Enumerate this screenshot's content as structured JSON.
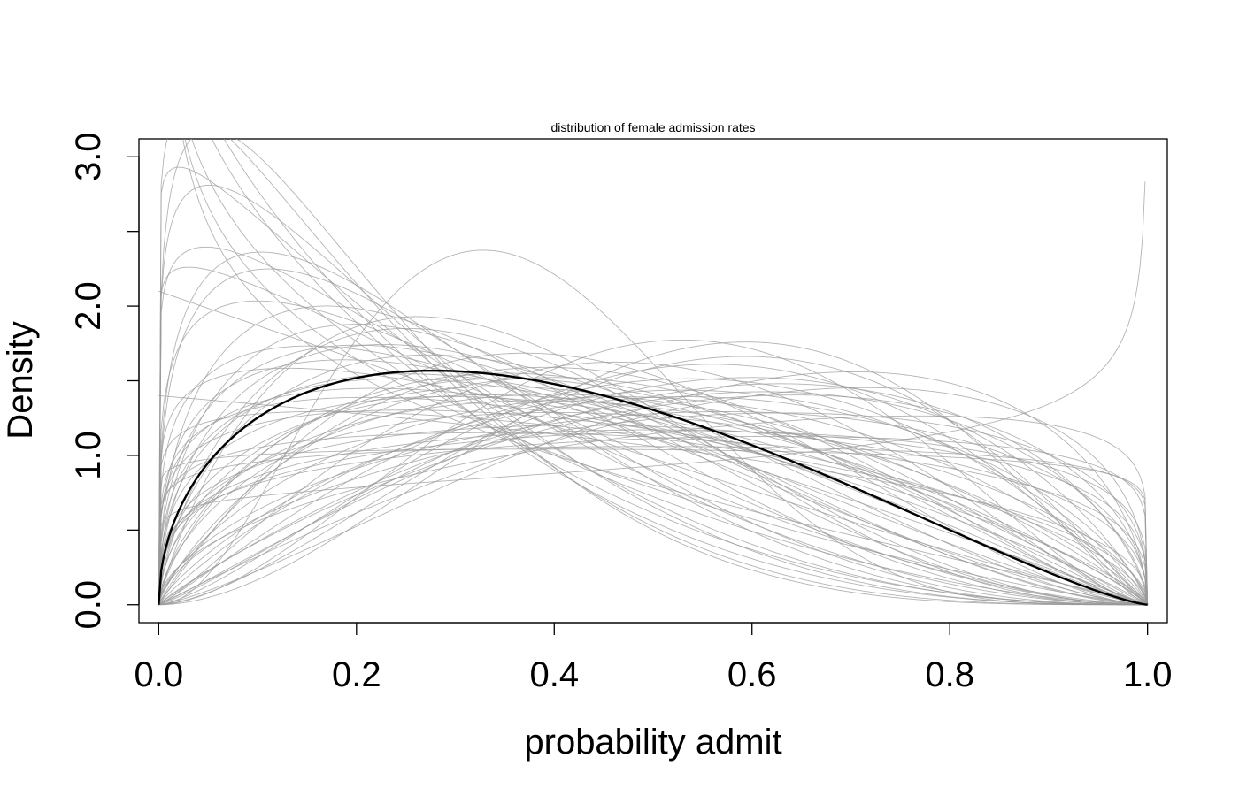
{
  "chart_data": {
    "type": "line",
    "title": "distribution of female admission rates",
    "xlabel": "probability admit",
    "ylabel": "Density",
    "xlim": [
      -0.02,
      1.02
    ],
    "ylim": [
      -0.12,
      3.12
    ],
    "xticks": [
      0.0,
      0.2,
      0.4,
      0.6,
      0.8,
      1.0
    ],
    "xtick_labels": [
      "0.0",
      "0.2",
      "0.4",
      "0.6",
      "0.8",
      "1.0"
    ],
    "yticks": [
      0.0,
      0.5,
      1.0,
      1.5,
      2.0,
      2.5,
      3.0
    ],
    "yticks_labeled": [
      0.0,
      1.0,
      2.0,
      3.0
    ],
    "ytick_labels": [
      "0.0",
      "1.0",
      "2.0",
      "3.0"
    ],
    "grid": false,
    "legend": "none",
    "mean_curve": {
      "distribution": "beta",
      "a": 1.5,
      "b": 2.3,
      "color": "#000000"
    },
    "posterior_samples": {
      "distribution": "beta",
      "color": "#9a9a9a",
      "params": [
        [
          0.85,
          2.6
        ],
        [
          0.9,
          3.2
        ],
        [
          0.8,
          2.2
        ],
        [
          0.95,
          3.6
        ],
        [
          0.75,
          1.9
        ],
        [
          1.05,
          3.4
        ],
        [
          1.1,
          4.2
        ],
        [
          1.2,
          4.6
        ],
        [
          1.1,
          3.0
        ],
        [
          1.3,
          3.6
        ],
        [
          1.2,
          2.8
        ],
        [
          1.15,
          2.0
        ],
        [
          1.3,
          2.3
        ],
        [
          1.4,
          2.6
        ],
        [
          1.5,
          3.0
        ],
        [
          1.25,
          1.9
        ],
        [
          1.6,
          2.6
        ],
        [
          1.7,
          2.3
        ],
        [
          1.5,
          1.8
        ],
        [
          1.8,
          2.2
        ],
        [
          1.9,
          2.4
        ],
        [
          2.0,
          2.7
        ],
        [
          1.7,
          1.8
        ],
        [
          2.2,
          2.4
        ],
        [
          2.4,
          2.1
        ],
        [
          2.2,
          1.8
        ],
        [
          2.1,
          1.65
        ],
        [
          2.6,
          2.1
        ],
        [
          2.9,
          2.3
        ],
        [
          2.3,
          1.55
        ],
        [
          1.9,
          1.5
        ],
        [
          2.0,
          1.4
        ],
        [
          1.6,
          1.45
        ],
        [
          1.55,
          2.05
        ],
        [
          1.4,
          1.6
        ],
        [
          1.45,
          1.9
        ],
        [
          1.3,
          1.4
        ],
        [
          1.05,
          1.08
        ],
        [
          1.3,
          1.25
        ],
        [
          1.6,
          1.35
        ],
        [
          1.5,
          1.15
        ],
        [
          1.35,
          2.1
        ],
        [
          1.2,
          1.75
        ],
        [
          1.1,
          1.5
        ],
        [
          1.0,
          1.4
        ],
        [
          1.7,
          3.1
        ],
        [
          1.45,
          3.2
        ],
        [
          1.85,
          3.4
        ],
        [
          1.95,
          1.6
        ],
        [
          1.25,
          2.4
        ],
        [
          1.15,
          1.3
        ],
        [
          1.5,
          2.7
        ],
        [
          2.1,
          1.95
        ],
        [
          1.0,
          2.1
        ],
        [
          1.3,
          3.4
        ],
        [
          1.6,
          1.9
        ],
        [
          3.1,
          5.3
        ],
        [
          1.1,
          1.1
        ],
        [
          1.2,
          1.6
        ],
        [
          2.8,
          2.6
        ],
        [
          1.05,
          2.6
        ],
        [
          1.8,
          1.7
        ],
        [
          1.35,
          1.85
        ],
        [
          1.25,
          1.15
        ],
        [
          1.65,
          2.2
        ],
        [
          1.15,
          3.8
        ],
        [
          1.9,
          1.8
        ],
        [
          1.4,
          2.2
        ],
        [
          1.3,
          1.3
        ],
        [
          1.08,
          0.8
        ]
      ]
    }
  }
}
